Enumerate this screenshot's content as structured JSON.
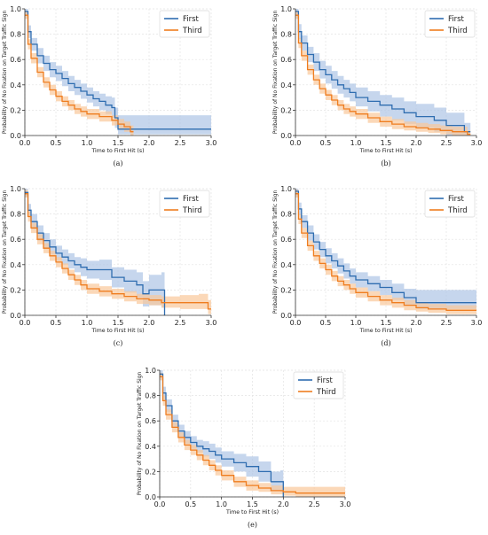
{
  "colors": {
    "first": "#2f6db0",
    "third": "#ef7d1f",
    "first_band": "#aec4e6",
    "third_band": "#f9c89a",
    "grid": "#e3e3e3",
    "axis": "#333333"
  },
  "chart_data": [
    {
      "type": "line",
      "step": true,
      "panel": "(a)",
      "xlabel": "Time to First Hit (s)",
      "ylabel": "Probability of No Fixation on Target Traffic Sign",
      "xlim": [
        0,
        3.0
      ],
      "ylim": [
        0,
        1.0
      ],
      "xticks": [
        "0.0",
        "0.5",
        "1.0",
        "1.5",
        "2.0",
        "2.5",
        "3.0"
      ],
      "yticks": [
        "0.0",
        "0.2",
        "0.4",
        "0.6",
        "0.8",
        "1.0"
      ],
      "grid": true,
      "legend": "top-right",
      "series": [
        {
          "name": "First",
          "x": [
            0,
            0.05,
            0.1,
            0.2,
            0.3,
            0.4,
            0.5,
            0.6,
            0.7,
            0.8,
            0.9,
            1.0,
            1.1,
            1.2,
            1.3,
            1.4,
            1.45,
            1.5,
            3.0
          ],
          "y": [
            0.98,
            0.82,
            0.72,
            0.63,
            0.57,
            0.52,
            0.49,
            0.45,
            0.41,
            0.38,
            0.35,
            0.32,
            0.29,
            0.27,
            0.24,
            0.22,
            0.14,
            0.05,
            0.05
          ],
          "lower": [
            0.95,
            0.77,
            0.67,
            0.57,
            0.51,
            0.46,
            0.43,
            0.39,
            0.35,
            0.32,
            0.29,
            0.26,
            0.23,
            0.2,
            0.17,
            0.14,
            0.06,
            0.01,
            0.01
          ],
          "upper": [
            1.0,
            0.87,
            0.77,
            0.69,
            0.63,
            0.58,
            0.55,
            0.51,
            0.47,
            0.44,
            0.41,
            0.38,
            0.35,
            0.33,
            0.31,
            0.3,
            0.22,
            0.16,
            0.16
          ]
        },
        {
          "name": "Third",
          "x": [
            0,
            0.05,
            0.1,
            0.2,
            0.3,
            0.4,
            0.5,
            0.6,
            0.7,
            0.8,
            0.9,
            1.0,
            1.2,
            1.4,
            1.5,
            1.6,
            1.7,
            1.75
          ],
          "y": [
            0.95,
            0.72,
            0.61,
            0.5,
            0.42,
            0.36,
            0.31,
            0.27,
            0.24,
            0.21,
            0.19,
            0.17,
            0.15,
            0.12,
            0.09,
            0.07,
            0.03,
            0.03
          ],
          "lower": [
            0.92,
            0.68,
            0.57,
            0.46,
            0.38,
            0.32,
            0.27,
            0.23,
            0.2,
            0.17,
            0.15,
            0.13,
            0.11,
            0.08,
            0.05,
            0.03,
            0.0,
            0.0
          ],
          "upper": [
            0.98,
            0.76,
            0.65,
            0.54,
            0.46,
            0.4,
            0.35,
            0.31,
            0.28,
            0.25,
            0.23,
            0.21,
            0.19,
            0.16,
            0.13,
            0.11,
            0.08,
            0.08
          ]
        }
      ]
    },
    {
      "type": "line",
      "step": true,
      "panel": "(b)",
      "xlabel": "Time to First Hit (s)",
      "ylabel": "Probability of No Fixation on Target Traffic Sign",
      "xlim": [
        0,
        3.0
      ],
      "ylim": [
        0,
        1.0
      ],
      "xticks": [
        "0.0",
        "0.5",
        "1.0",
        "1.5",
        "2.0",
        "2.5",
        "3.0"
      ],
      "yticks": [
        "0.0",
        "0.2",
        "0.4",
        "0.6",
        "0.8",
        "1.0"
      ],
      "grid": true,
      "legend": "top-right",
      "series": [
        {
          "name": "First",
          "x": [
            0,
            0.05,
            0.1,
            0.2,
            0.3,
            0.4,
            0.5,
            0.6,
            0.7,
            0.8,
            0.9,
            1.0,
            1.2,
            1.4,
            1.6,
            1.8,
            2.0,
            2.3,
            2.5,
            2.8,
            2.9
          ],
          "y": [
            0.98,
            0.82,
            0.73,
            0.64,
            0.58,
            0.52,
            0.48,
            0.44,
            0.4,
            0.37,
            0.34,
            0.3,
            0.27,
            0.24,
            0.21,
            0.18,
            0.15,
            0.12,
            0.08,
            0.03,
            0.03
          ],
          "lower": [
            0.95,
            0.76,
            0.67,
            0.58,
            0.51,
            0.45,
            0.41,
            0.37,
            0.33,
            0.3,
            0.27,
            0.23,
            0.19,
            0.15,
            0.12,
            0.09,
            0.06,
            0.03,
            0.0,
            0.0,
            0.0
          ],
          "upper": [
            1.0,
            0.88,
            0.79,
            0.7,
            0.65,
            0.59,
            0.55,
            0.51,
            0.47,
            0.44,
            0.41,
            0.38,
            0.35,
            0.32,
            0.3,
            0.27,
            0.25,
            0.22,
            0.18,
            0.1,
            0.1
          ]
        },
        {
          "name": "Third",
          "x": [
            0,
            0.05,
            0.1,
            0.2,
            0.3,
            0.4,
            0.5,
            0.6,
            0.7,
            0.8,
            0.9,
            1.0,
            1.2,
            1.4,
            1.6,
            1.8,
            2.0,
            2.2,
            2.4,
            2.6,
            2.85,
            2.9
          ],
          "y": [
            0.95,
            0.73,
            0.63,
            0.52,
            0.44,
            0.37,
            0.32,
            0.28,
            0.24,
            0.21,
            0.19,
            0.17,
            0.14,
            0.11,
            0.09,
            0.07,
            0.06,
            0.05,
            0.04,
            0.03,
            0.01,
            0.01
          ],
          "lower": [
            0.92,
            0.69,
            0.59,
            0.48,
            0.4,
            0.33,
            0.28,
            0.24,
            0.2,
            0.17,
            0.15,
            0.13,
            0.1,
            0.07,
            0.05,
            0.04,
            0.03,
            0.02,
            0.01,
            0.0,
            0.0,
            0.0
          ],
          "upper": [
            0.98,
            0.77,
            0.67,
            0.56,
            0.48,
            0.41,
            0.36,
            0.32,
            0.28,
            0.25,
            0.23,
            0.21,
            0.18,
            0.15,
            0.13,
            0.11,
            0.1,
            0.09,
            0.08,
            0.07,
            0.04,
            0.04
          ]
        }
      ]
    },
    {
      "type": "line",
      "step": true,
      "panel": "(c)",
      "xlabel": "Time to First Hit (s)",
      "ylabel": "Probability of No Fixation on Target Traffic Sign",
      "xlim": [
        0,
        3.0
      ],
      "ylim": [
        0,
        1.0
      ],
      "xticks": [
        "0.0",
        "0.5",
        "1.0",
        "1.5",
        "2.0",
        "2.5",
        "3.0"
      ],
      "yticks": [
        "0.0",
        "0.2",
        "0.4",
        "0.6",
        "0.8",
        "1.0"
      ],
      "grid": true,
      "legend": "top-right",
      "series": [
        {
          "name": "First",
          "x": [
            0,
            0.05,
            0.1,
            0.2,
            0.3,
            0.4,
            0.5,
            0.6,
            0.7,
            0.8,
            0.9,
            1.0,
            1.2,
            1.4,
            1.6,
            1.8,
            1.9,
            2.0,
            2.2,
            2.25
          ],
          "y": [
            0.97,
            0.83,
            0.74,
            0.65,
            0.59,
            0.54,
            0.49,
            0.46,
            0.43,
            0.4,
            0.38,
            0.36,
            0.36,
            0.3,
            0.27,
            0.24,
            0.17,
            0.2,
            0.2,
            0.0
          ],
          "lower": [
            0.94,
            0.78,
            0.68,
            0.59,
            0.53,
            0.48,
            0.43,
            0.4,
            0.37,
            0.34,
            0.31,
            0.29,
            0.28,
            0.22,
            0.18,
            0.14,
            0.07,
            0.08,
            0.06,
            0.0
          ],
          "upper": [
            1.0,
            0.88,
            0.8,
            0.71,
            0.65,
            0.6,
            0.55,
            0.52,
            0.49,
            0.46,
            0.45,
            0.43,
            0.44,
            0.38,
            0.36,
            0.34,
            0.27,
            0.32,
            0.34,
            0.34
          ]
        },
        {
          "name": "Third",
          "x": [
            0,
            0.05,
            0.1,
            0.2,
            0.3,
            0.4,
            0.5,
            0.6,
            0.7,
            0.8,
            0.9,
            1.0,
            1.2,
            1.4,
            1.6,
            1.8,
            2.0,
            2.2,
            2.5,
            2.8,
            2.95,
            3.0
          ],
          "y": [
            0.96,
            0.78,
            0.69,
            0.6,
            0.53,
            0.47,
            0.42,
            0.37,
            0.32,
            0.28,
            0.24,
            0.21,
            0.19,
            0.17,
            0.15,
            0.13,
            0.12,
            0.1,
            0.1,
            0.1,
            0.05,
            0.05
          ],
          "lower": [
            0.93,
            0.74,
            0.65,
            0.56,
            0.49,
            0.43,
            0.38,
            0.33,
            0.28,
            0.24,
            0.2,
            0.17,
            0.15,
            0.13,
            0.11,
            0.09,
            0.08,
            0.06,
            0.05,
            0.05,
            0.01,
            0.01
          ],
          "upper": [
            0.99,
            0.82,
            0.73,
            0.64,
            0.57,
            0.51,
            0.46,
            0.41,
            0.36,
            0.32,
            0.28,
            0.25,
            0.23,
            0.21,
            0.19,
            0.17,
            0.16,
            0.15,
            0.16,
            0.17,
            0.12,
            0.12
          ]
        }
      ]
    },
    {
      "type": "line",
      "step": true,
      "panel": "(d)",
      "xlabel": "Time to First Hit (s)",
      "ylabel": "Probability of No Fixation on Target Traffic Sign",
      "xlim": [
        0,
        3.0
      ],
      "ylim": [
        0,
        1.0
      ],
      "xticks": [
        "0.0",
        "0.5",
        "1.0",
        "1.5",
        "2.0",
        "2.5",
        "3.0"
      ],
      "yticks": [
        "0.0",
        "0.2",
        "0.4",
        "0.6",
        "0.8",
        "1.0"
      ],
      "grid": true,
      "legend": "top-right",
      "series": [
        {
          "name": "First",
          "x": [
            0,
            0.05,
            0.1,
            0.2,
            0.3,
            0.4,
            0.5,
            0.6,
            0.7,
            0.8,
            0.9,
            1.0,
            1.2,
            1.4,
            1.6,
            1.8,
            2.0,
            3.0
          ],
          "y": [
            0.98,
            0.84,
            0.74,
            0.65,
            0.58,
            0.52,
            0.47,
            0.43,
            0.39,
            0.35,
            0.31,
            0.28,
            0.25,
            0.22,
            0.18,
            0.14,
            0.1,
            0.1
          ],
          "lower": [
            0.95,
            0.79,
            0.69,
            0.59,
            0.52,
            0.46,
            0.41,
            0.37,
            0.33,
            0.29,
            0.25,
            0.22,
            0.19,
            0.16,
            0.12,
            0.08,
            0.05,
            0.05
          ],
          "upper": [
            1.0,
            0.89,
            0.79,
            0.71,
            0.64,
            0.58,
            0.53,
            0.49,
            0.45,
            0.41,
            0.37,
            0.34,
            0.31,
            0.28,
            0.25,
            0.21,
            0.2,
            0.2
          ]
        },
        {
          "name": "Third",
          "x": [
            0,
            0.05,
            0.1,
            0.2,
            0.3,
            0.4,
            0.5,
            0.6,
            0.7,
            0.8,
            0.9,
            1.0,
            1.2,
            1.4,
            1.6,
            1.8,
            2.0,
            2.2,
            2.5,
            3.0
          ],
          "y": [
            0.96,
            0.76,
            0.65,
            0.55,
            0.47,
            0.41,
            0.36,
            0.31,
            0.27,
            0.24,
            0.21,
            0.18,
            0.15,
            0.12,
            0.1,
            0.08,
            0.06,
            0.05,
            0.04,
            0.04
          ],
          "lower": [
            0.93,
            0.72,
            0.61,
            0.51,
            0.43,
            0.37,
            0.32,
            0.27,
            0.23,
            0.2,
            0.17,
            0.14,
            0.11,
            0.08,
            0.06,
            0.04,
            0.03,
            0.02,
            0.01,
            0.01
          ],
          "upper": [
            0.99,
            0.8,
            0.69,
            0.59,
            0.51,
            0.45,
            0.4,
            0.35,
            0.31,
            0.28,
            0.25,
            0.22,
            0.19,
            0.16,
            0.14,
            0.12,
            0.1,
            0.09,
            0.08,
            0.08
          ]
        }
      ]
    },
    {
      "type": "line",
      "step": true,
      "panel": "(e)",
      "xlabel": "Time to First Hit (s)",
      "ylabel": "Probability of No Fixation on Target Traffic Sign",
      "xlim": [
        0,
        3.0
      ],
      "ylim": [
        0,
        1.0
      ],
      "xticks": [
        "0.0",
        "0.5",
        "1.0",
        "1.5",
        "2.0",
        "2.5",
        "3.0"
      ],
      "yticks": [
        "0.0",
        "0.2",
        "0.4",
        "0.6",
        "0.8",
        "1.0"
      ],
      "grid": true,
      "legend": "top-right",
      "series": [
        {
          "name": "First",
          "x": [
            0,
            0.05,
            0.1,
            0.2,
            0.3,
            0.4,
            0.5,
            0.6,
            0.7,
            0.8,
            0.9,
            1.0,
            1.2,
            1.4,
            1.6,
            1.8,
            1.95,
            2.0
          ],
          "y": [
            0.97,
            0.82,
            0.72,
            0.6,
            0.52,
            0.47,
            0.43,
            0.4,
            0.38,
            0.36,
            0.33,
            0.3,
            0.27,
            0.24,
            0.2,
            0.12,
            0.12,
            0.0
          ],
          "lower": [
            0.94,
            0.77,
            0.67,
            0.55,
            0.47,
            0.42,
            0.38,
            0.35,
            0.32,
            0.3,
            0.27,
            0.24,
            0.2,
            0.16,
            0.12,
            0.05,
            0.04,
            0.0
          ],
          "upper": [
            1.0,
            0.87,
            0.77,
            0.65,
            0.57,
            0.52,
            0.48,
            0.45,
            0.44,
            0.42,
            0.39,
            0.36,
            0.34,
            0.32,
            0.28,
            0.2,
            0.21,
            0.21
          ]
        },
        {
          "name": "Third",
          "x": [
            0,
            0.05,
            0.1,
            0.2,
            0.3,
            0.4,
            0.5,
            0.6,
            0.7,
            0.8,
            0.9,
            1.0,
            1.2,
            1.4,
            1.6,
            1.8,
            2.0,
            2.2,
            2.5,
            3.0
          ],
          "y": [
            0.95,
            0.76,
            0.65,
            0.55,
            0.47,
            0.41,
            0.37,
            0.33,
            0.29,
            0.25,
            0.21,
            0.17,
            0.12,
            0.09,
            0.07,
            0.05,
            0.04,
            0.03,
            0.03,
            0.03
          ],
          "lower": [
            0.92,
            0.72,
            0.61,
            0.51,
            0.43,
            0.37,
            0.33,
            0.29,
            0.25,
            0.21,
            0.17,
            0.13,
            0.08,
            0.05,
            0.04,
            0.02,
            0.01,
            0.0,
            0.0,
            0.0
          ],
          "upper": [
            0.98,
            0.8,
            0.69,
            0.59,
            0.51,
            0.45,
            0.41,
            0.37,
            0.33,
            0.29,
            0.25,
            0.21,
            0.16,
            0.13,
            0.11,
            0.09,
            0.08,
            0.08,
            0.08,
            0.08
          ]
        }
      ]
    }
  ]
}
